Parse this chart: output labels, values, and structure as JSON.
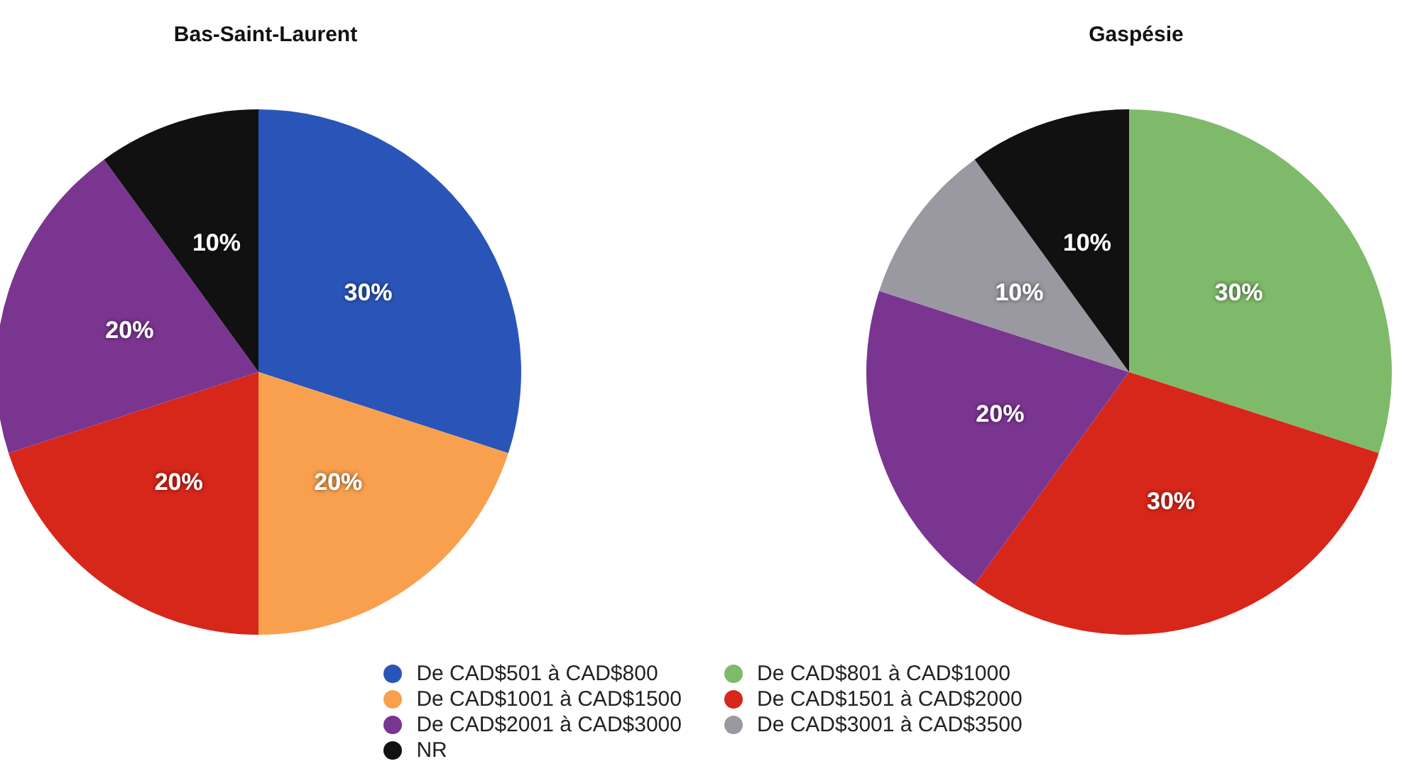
{
  "chart_data": {
    "type": "pie",
    "categories": [
      "De CAD$501 à CAD$800",
      "De CAD$801 à CAD$1000",
      "De CAD$1001 à CAD$1500",
      "De CAD$1501 à CAD$2000",
      "De CAD$2001 à CAD$3000",
      "De CAD$3001 à CAD$3500",
      "NR"
    ],
    "colors": [
      "#2a55b8",
      "#7fba6a",
      "#f9a04e",
      "#d7261a",
      "#7a3590",
      "#9a98a0",
      "#111111"
    ],
    "legend": "bottom",
    "series": [
      {
        "name": "Bas-Saint-Laurent",
        "values": [
          30,
          null,
          20,
          20,
          20,
          null,
          10
        ],
        "value_labels": [
          "30%",
          null,
          "20%",
          "20%",
          "20%",
          null,
          "10%"
        ]
      },
      {
        "name": "Gaspésie",
        "values": [
          null,
          30,
          null,
          30,
          20,
          10,
          10
        ],
        "value_labels": [
          null,
          "30%",
          null,
          "30%",
          "20%",
          "10%",
          "10%"
        ]
      }
    ]
  }
}
